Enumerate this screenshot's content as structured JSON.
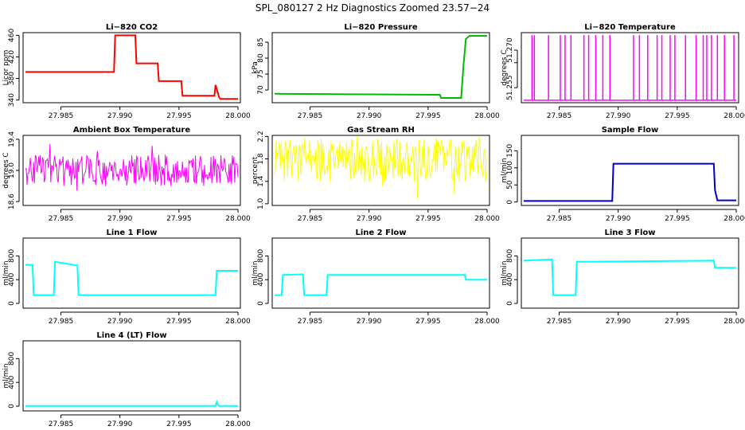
{
  "figure": {
    "title": "SPL_080127  2 Hz Diagnostics Zoomed 23.57−24"
  },
  "chart_data": [
    {
      "type": "line",
      "title": "Li−820 CO2",
      "ylabel": "Licor ppm",
      "color": "#ff0000",
      "xlim": [
        27.9818,
        28.0002
      ],
      "ylim": [
        335,
        465
      ],
      "x_ticks": [
        "27.985",
        "27.990",
        "27.995",
        "28.000"
      ],
      "y_ticks": [
        "340",
        "380",
        "420",
        "460"
      ],
      "series": [
        {
          "x": [
            27.982,
            27.9895,
            27.9896,
            27.9913,
            27.9914,
            27.9932,
            27.9933,
            27.9952,
            27.9953,
            27.998,
            27.9981,
            27.9984,
            27.9985,
            28.0
          ],
          "y": [
            392,
            392,
            460,
            460,
            408,
            408,
            375,
            375,
            348,
            348,
            368,
            345,
            342,
            342
          ]
        }
      ]
    },
    {
      "type": "line",
      "title": "Li−820 Pressure",
      "ylabel": "kPa",
      "color": "#00bb00",
      "xlim": [
        27.9818,
        28.0002
      ],
      "ylim": [
        66,
        88
      ],
      "x_ticks": [
        "27.985",
        "27.990",
        "27.995",
        "28.000"
      ],
      "y_ticks": [
        "70",
        "75",
        "80",
        "85"
      ],
      "series": [
        {
          "x": [
            27.982,
            27.996,
            27.9961,
            27.9978,
            27.998,
            27.9982,
            27.9985,
            28.0
          ],
          "y": [
            68.8,
            68.5,
            67.5,
            67.5,
            78,
            86,
            87,
            87
          ]
        }
      ]
    },
    {
      "type": "line",
      "title": "Li−820 Temperature",
      "ylabel": "degrees C",
      "color": "#ff00ff",
      "xlim": [
        27.9818,
        28.0002
      ],
      "ylim": [
        51.249,
        51.277
      ],
      "x_ticks": [
        "27.985",
        "27.990",
        "27.995",
        "28.000"
      ],
      "y_ticks": [
        "51.255",
        "51.270"
      ],
      "y_ticks_hidden_middle": "51.265",
      "baseline": 51.25,
      "spikes_x": [
        27.9827,
        27.9829,
        27.9841,
        27.9851,
        27.9855,
        27.986,
        27.9871,
        27.9875,
        27.9881,
        27.9887,
        27.9893,
        27.9913,
        27.9918,
        27.9925,
        27.9933,
        27.9937,
        27.9944,
        27.9948,
        27.9957,
        27.9966,
        27.9972,
        27.9975,
        27.9979,
        27.9984,
        27.999,
        27.9998
      ],
      "spike_top": 51.276
    },
    {
      "type": "line",
      "title": "Ambient Box Temperature",
      "ylabel": "degrees C",
      "color": "#ff00ff",
      "xlim": [
        27.9818,
        28.0002
      ],
      "ylim": [
        18.55,
        19.45
      ],
      "x_ticks": [
        "27.985",
        "27.990",
        "27.995",
        "28.000"
      ],
      "y_ticks": [
        "18.6",
        "19.0",
        "19.4"
      ],
      "noise": {
        "center": 19.0,
        "amp": 0.4
      }
    },
    {
      "type": "line",
      "title": "Gas Stream RH",
      "ylabel": "percent",
      "color": "#ffff00",
      "xlim": [
        27.9818,
        28.0002
      ],
      "ylim": [
        0.97,
        2.22
      ],
      "x_ticks": [
        "27.985",
        "27.990",
        "27.995",
        "28.000"
      ],
      "y_ticks": [
        "1.0",
        "1.4",
        "1.8",
        "2.2"
      ],
      "noise": {
        "center": 1.78,
        "amp": 0.8
      }
    },
    {
      "type": "line",
      "title": "Sample Flow",
      "ylabel": "ml/min",
      "color": "#0000cc",
      "xlim": [
        27.9818,
        28.0002
      ],
      "ylim": [
        -10,
        195
      ],
      "x_ticks": [
        "27.985",
        "27.990",
        "27.995",
        "28.000"
      ],
      "y_ticks": [
        "0",
        "50",
        "100",
        "150"
      ],
      "series": [
        {
          "x": [
            27.982,
            27.9895,
            27.9896,
            27.9981,
            27.9982,
            27.9984,
            28.0
          ],
          "y": [
            3,
            3,
            112,
            112,
            35,
            5,
            5
          ]
        }
      ]
    },
    {
      "type": "line",
      "title": "Line 1 Flow",
      "ylabel": "ml/min",
      "color": "#00ffff",
      "xlim": [
        27.9818,
        28.0002
      ],
      "ylim": [
        -80,
        1100
      ],
      "x_ticks": [
        "27.985",
        "27.990",
        "27.995",
        "28.000"
      ],
      "y_ticks": [
        "0",
        "400",
        "800"
      ],
      "series": [
        {
          "x": [
            27.982,
            27.9826,
            27.9827,
            27.9844,
            27.9845,
            27.9864,
            27.9865,
            27.9981,
            27.9982,
            28.0
          ],
          "y": [
            650,
            650,
            140,
            140,
            700,
            640,
            140,
            140,
            550,
            550
          ]
        }
      ]
    },
    {
      "type": "line",
      "title": "Line 2 Flow",
      "ylabel": "ml/min",
      "color": "#00ffff",
      "xlim": [
        27.9818,
        28.0002
      ],
      "ylim": [
        -80,
        1100
      ],
      "x_ticks": [
        "27.985",
        "27.990",
        "27.995",
        "28.000"
      ],
      "y_ticks": [
        "0",
        "400",
        "800"
      ],
      "series": [
        {
          "x": [
            27.982,
            27.9826,
            27.9827,
            27.9844,
            27.9845,
            27.9864,
            27.9865,
            27.9981,
            27.9982,
            28.0
          ],
          "y": [
            140,
            140,
            480,
            490,
            140,
            140,
            480,
            480,
            400,
            400
          ]
        }
      ]
    },
    {
      "type": "line",
      "title": "Line 3 Flow",
      "ylabel": "ml/min",
      "color": "#00ffff",
      "xlim": [
        27.9818,
        28.0002
      ],
      "ylim": [
        -80,
        1100
      ],
      "x_ticks": [
        "27.985",
        "27.990",
        "27.995",
        "28.000"
      ],
      "y_ticks": [
        "0",
        "400",
        "800"
      ],
      "series": [
        {
          "x": [
            27.982,
            27.9844,
            27.9845,
            27.9864,
            27.9865,
            27.9981,
            27.9982,
            28.0
          ],
          "y": [
            720,
            740,
            140,
            140,
            700,
            720,
            600,
            600
          ]
        }
      ]
    },
    {
      "type": "line",
      "title": "Line 4 (LT) Flow",
      "ylabel": "ml/min",
      "color": "#00ffff",
      "xlim": [
        27.9818,
        28.0002
      ],
      "ylim": [
        -80,
        1100
      ],
      "x_ticks": [
        "27.985",
        "27.990",
        "27.995",
        "28.000"
      ],
      "y_ticks": [
        "0",
        "400",
        "800"
      ],
      "series": [
        {
          "x": [
            27.982,
            27.9981,
            27.9982,
            27.9983,
            27.9984,
            28.0
          ],
          "y": [
            5,
            5,
            70,
            20,
            5,
            5
          ]
        }
      ]
    }
  ]
}
